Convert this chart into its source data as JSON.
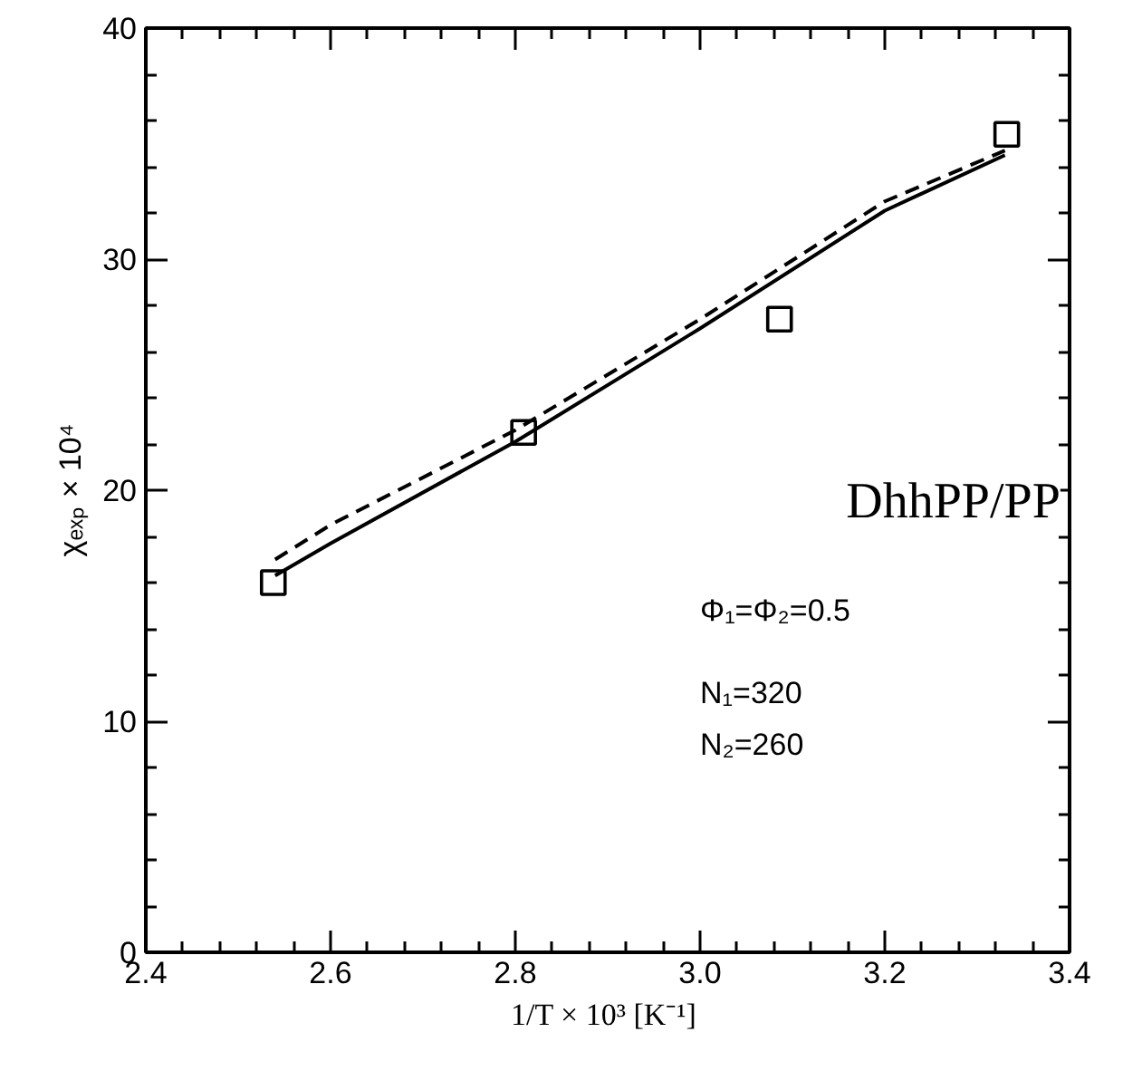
{
  "chart_data": {
    "type": "line",
    "xlabel": "1/T × 10³  [K⁻¹]",
    "ylabel": "χₑₓₚ × 10⁴",
    "xlim": [
      2.4,
      3.4
    ],
    "ylim": [
      0,
      40
    ],
    "xticks": [
      2.4,
      2.6,
      2.8,
      {
        "value": 3.0,
        "label": "3.0"
      },
      3.2,
      3.4
    ],
    "yticks": [
      0,
      10,
      20,
      30,
      40
    ],
    "grid": false,
    "series": [
      {
        "type": "scatter",
        "marker": "square",
        "color": "#000000",
        "x": [
          2.538,
          2.809,
          3.086,
          3.332
        ],
        "values": [
          16.0,
          22.5,
          27.4,
          35.4
        ]
      },
      {
        "line_style": "solid",
        "color": "#000000",
        "x": [
          2.54,
          2.6,
          2.8,
          3.0,
          3.2,
          3.33
        ],
        "values": [
          16.3,
          17.7,
          22.1,
          27.0,
          32.1,
          34.5
        ]
      },
      {
        "line_style": "dashed",
        "color": "#000000",
        "x": [
          2.54,
          2.6,
          2.8,
          3.0,
          3.2,
          3.33
        ],
        "values": [
          17.0,
          18.5,
          22.6,
          27.4,
          32.5,
          34.7
        ]
      }
    ],
    "annotations": [
      "DhhPP/PP",
      "Φ₁=Φ₂=0.5",
      "N₁=320",
      "N₂=260"
    ]
  }
}
